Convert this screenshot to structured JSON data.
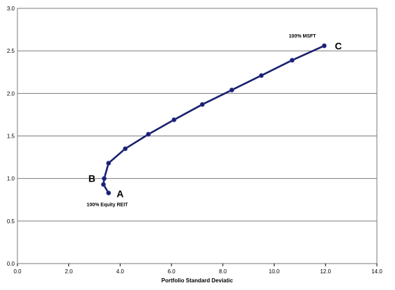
{
  "chart_data": {
    "type": "line",
    "title": "",
    "xlabel": "Portfolio Standard Deviatic",
    "ylabel": "",
    "xlim": [
      0,
      14
    ],
    "ylim": [
      0,
      3
    ],
    "x_ticks": [
      "0.0",
      "2.0",
      "4.0",
      "6.0",
      "8.0",
      "10.0",
      "12.0",
      "14.0"
    ],
    "y_ticks": [
      "0.0",
      "0.5",
      "1.0",
      "1.5",
      "2.0",
      "2.5",
      "3.0"
    ],
    "grid": "horizontal",
    "series": [
      {
        "color": "#1a1f6e",
        "x": [
          3.55,
          3.35,
          3.38,
          3.55,
          4.2,
          5.1,
          6.1,
          7.2,
          8.35,
          9.5,
          10.7,
          11.95
        ],
        "y": [
          0.83,
          0.93,
          1.0,
          1.18,
          1.35,
          1.52,
          1.69,
          1.87,
          2.04,
          2.21,
          2.39,
          2.56
        ]
      }
    ],
    "annotations": [
      {
        "text": "100% Equity REIT",
        "x": 3.5,
        "y": 0.7,
        "size": "small"
      },
      {
        "text": "100% MSFT",
        "x": 11.1,
        "y": 2.68,
        "size": "small"
      },
      {
        "text": "A",
        "x": 4.0,
        "y": 0.82,
        "size": "big"
      },
      {
        "text": "B",
        "x": 2.9,
        "y": 1.0,
        "size": "big"
      },
      {
        "text": "C",
        "x": 12.5,
        "y": 2.56,
        "size": "big"
      }
    ]
  }
}
